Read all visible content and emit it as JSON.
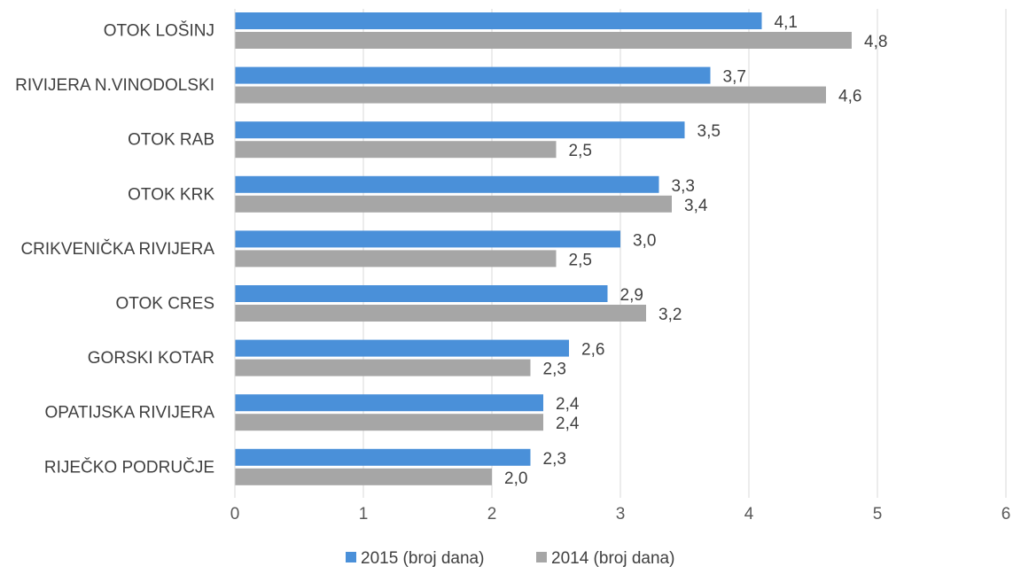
{
  "chart_data": {
    "type": "bar",
    "orientation": "horizontal",
    "categories": [
      "OTOK LOŠINJ",
      "RIVIJERA N.VINODOLSKI",
      "OTOK RAB",
      "OTOK KRK",
      "CRIKVENIČKA RIVIJERA",
      "OTOK CRES",
      "GORSKI KOTAR",
      "OPATIJSKA RIVIJERA",
      "RIJEČKO PODRUČJE"
    ],
    "series": [
      {
        "name": "2015 (broj dana)",
        "color": "#4a90d9",
        "values": [
          4.1,
          3.7,
          3.5,
          3.3,
          3.0,
          2.9,
          2.6,
          2.4,
          2.3
        ],
        "labels": [
          "4,1",
          "3,7",
          "3,5",
          "3,3",
          "3,0",
          "2,9",
          "2,6",
          "2,4",
          "2,3"
        ]
      },
      {
        "name": "2014 (broj dana)",
        "color": "#a6a6a6",
        "values": [
          4.8,
          4.6,
          2.5,
          3.4,
          2.5,
          3.2,
          2.3,
          2.4,
          2.0
        ],
        "labels": [
          "4,8",
          "4,6",
          "2,5",
          "3,4",
          "2,5",
          "3,2",
          "2,3",
          "2,4",
          "2,0"
        ]
      }
    ],
    "xlim": [
      0,
      6
    ],
    "xticks": [
      {
        "value": 0,
        "label": "0"
      },
      {
        "value": 1,
        "label": "1"
      },
      {
        "value": 2,
        "label": "2"
      },
      {
        "value": 3,
        "label": "3"
      },
      {
        "value": 4,
        "label": "4"
      },
      {
        "value": 5,
        "label": "5"
      },
      {
        "value": 6,
        "label": "6"
      }
    ],
    "title": "",
    "xlabel": "",
    "ylabel": "",
    "grid": true,
    "legend_position": "bottom"
  }
}
